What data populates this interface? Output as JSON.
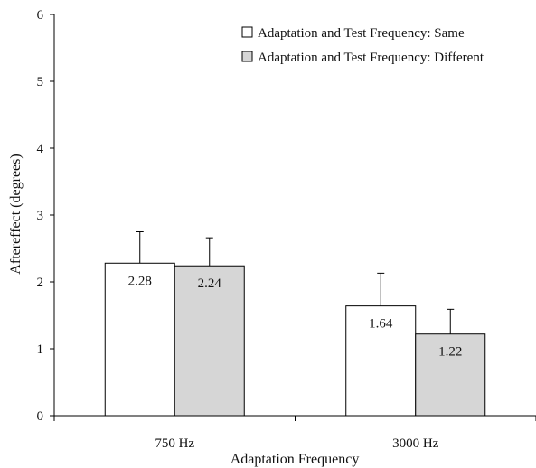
{
  "chart_data": {
    "type": "bar",
    "categories": [
      "750 Hz",
      "3000 Hz"
    ],
    "series": [
      {
        "name": "Adaptation and Test Frequency: Same",
        "values": [
          2.28,
          1.64
        ],
        "error": [
          0.47,
          0.49
        ],
        "labels": [
          "2.28",
          "1.64"
        ],
        "color": "#ffffff"
      },
      {
        "name": "Adaptation and Test Frequency: Different",
        "values": [
          2.24,
          1.22
        ],
        "error": [
          0.42,
          0.37
        ],
        "labels": [
          "2.24",
          "1.22"
        ],
        "color": "#d6d6d6"
      }
    ],
    "xlabel": "Adaptation Frequency",
    "ylabel": "Aftereffect (degrees)",
    "ylim": [
      0,
      6
    ],
    "yticks": [
      "0",
      "1",
      "2",
      "3",
      "4",
      "5",
      "6"
    ],
    "grid": false,
    "legend_position": "top-right"
  }
}
